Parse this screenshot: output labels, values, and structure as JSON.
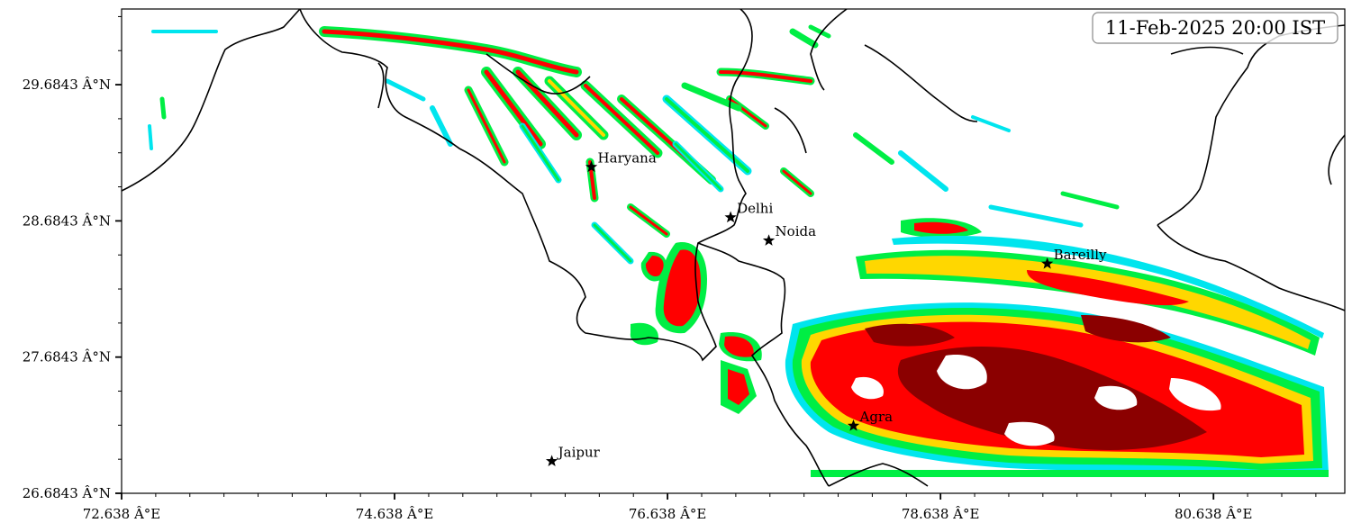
{
  "timestamp": "11-Feb-2025 20:00 IST",
  "x_ticks": [
    {
      "value": 72.638,
      "label": "72.638 Â°E"
    },
    {
      "value": 74.638,
      "label": "74.638 Â°E"
    },
    {
      "value": 76.638,
      "label": "76.638 Â°E"
    },
    {
      "value": 78.638,
      "label": "78.638 Â°E"
    },
    {
      "value": 80.638,
      "label": "80.638 Â°E"
    }
  ],
  "y_ticks": [
    {
      "value": 29.6843,
      "label": "29.6843 Â°N"
    },
    {
      "value": 28.6843,
      "label": "28.6843 Â°N"
    },
    {
      "value": 27.6843,
      "label": "27.6843 Â°N"
    },
    {
      "value": 26.6843,
      "label": "26.6843 Â°N"
    }
  ],
  "extent": {
    "lon": [
      72.638,
      81.6
    ],
    "lat": [
      26.6843,
      30.24
    ]
  },
  "cities": [
    {
      "name": "Haryana",
      "lon": 76.08,
      "lat": 29.08
    },
    {
      "name": "Delhi",
      "lon": 77.1,
      "lat": 28.71
    },
    {
      "name": "Noida",
      "lon": 77.38,
      "lat": 28.54
    },
    {
      "name": "Bareilly",
      "lon": 79.42,
      "lat": 28.37
    },
    {
      "name": "Agra",
      "lon": 78.0,
      "lat": 27.18
    },
    {
      "name": "Jaipur",
      "lon": 75.79,
      "lat": 26.92
    }
  ],
  "colors": {
    "level1": "#00e5ee",
    "level2": "#00ee44",
    "level3": "#ffd700",
    "level4": "#ff0000",
    "level5": "#8b0000",
    "boundary": "#000000"
  }
}
